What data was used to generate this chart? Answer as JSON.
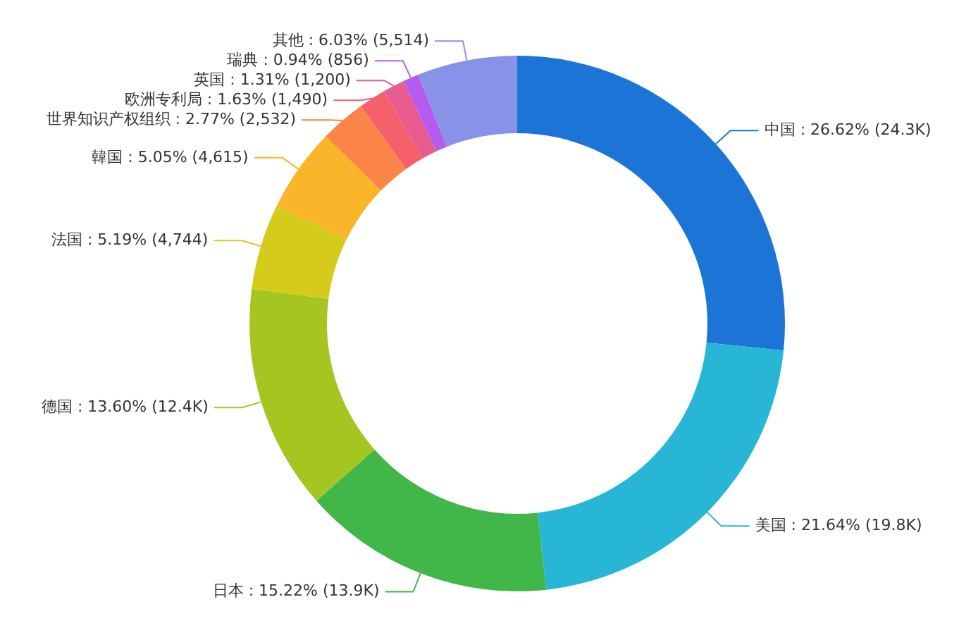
{
  "chart_data": {
    "type": "donut",
    "categories": [
      "中国",
      "美国",
      "日本",
      "德国",
      "法国",
      "韓国",
      "世界知识产权组织",
      "欧洲专利局",
      "英国",
      "瑞典",
      "其他"
    ],
    "values": [
      24300,
      19800,
      13900,
      12400,
      4744,
      4615,
      2532,
      1490,
      1200,
      856,
      5514
    ],
    "value_labels": [
      "26.62% (24.3K)",
      "21.64% (19.8K)",
      "15.22% (13.9K)",
      "13.60% (12.4K)",
      "5.19% (4,744)",
      "5.05% (4,615)",
      "2.77% (2,532)",
      "1.63% (1,490)",
      "1.31% (1,200)",
      "0.94% (856)",
      "6.03% (5,514)"
    ],
    "colors": [
      "#1b74d6",
      "#27b6d6",
      "#41b649",
      "#a5c520",
      "#d5cb1c",
      "#fbb52a",
      "#fb8449",
      "#f6606b",
      "#e65c8e",
      "#b45cf0",
      "#8892e8"
    ]
  }
}
